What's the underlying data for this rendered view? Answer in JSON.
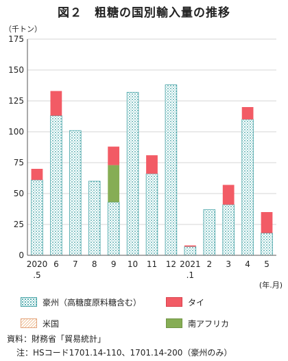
{
  "title": "図２　粗糖の国別輸入量の推移",
  "unit_label": "（千トン）",
  "x_unit_label": "(年.月)",
  "chart_data": {
    "type": "bar",
    "stacked": true,
    "categories": [
      "2020\n.5",
      "6",
      "7",
      "8",
      "9",
      "10",
      "11",
      "12",
      "2021\n.1",
      "2",
      "3",
      "4",
      "5"
    ],
    "series": [
      {
        "name": "豪州（高糖度原料糖含む）",
        "color": "#2f9b9e",
        "pattern": "dots",
        "values": [
          61,
          113,
          101,
          60,
          43,
          132,
          66,
          138,
          7,
          37,
          41,
          110,
          18
        ]
      },
      {
        "name": "南アフリカ",
        "color": "#86ad55",
        "pattern": "solid",
        "values": [
          0,
          0,
          0,
          0,
          30,
          0,
          0,
          0,
          0,
          0,
          0,
          0,
          0
        ]
      },
      {
        "name": "タイ",
        "color": "#f25b65",
        "pattern": "solid",
        "values": [
          9,
          20,
          0,
          0,
          15,
          0,
          15,
          0,
          1,
          0,
          16,
          10,
          17
        ]
      },
      {
        "name": "米国",
        "color": "#f0c49d",
        "pattern": "diagonal",
        "values": [
          0,
          0,
          0,
          0,
          0,
          0,
          0,
          0,
          0,
          0,
          0,
          0,
          0
        ]
      }
    ],
    "yticks": [
      0,
      25,
      50,
      75,
      100,
      125,
      150,
      175
    ],
    "ylim": [
      0,
      175
    ],
    "grid": true,
    "legend_position": "bottom"
  },
  "legend": [
    {
      "label": "豪州（高糖度原料糖含む）",
      "swatch": "hatch"
    },
    {
      "label": "タイ",
      "swatch": "red"
    },
    {
      "label": "米国",
      "swatch": "diag"
    },
    {
      "label": "南アフリカ",
      "swatch": "green"
    }
  ],
  "footnotes": {
    "source": "資料：財務省「貿易統計」",
    "note": "注：HSコード1701.14-110、1701.14-200（豪州のみ）"
  }
}
